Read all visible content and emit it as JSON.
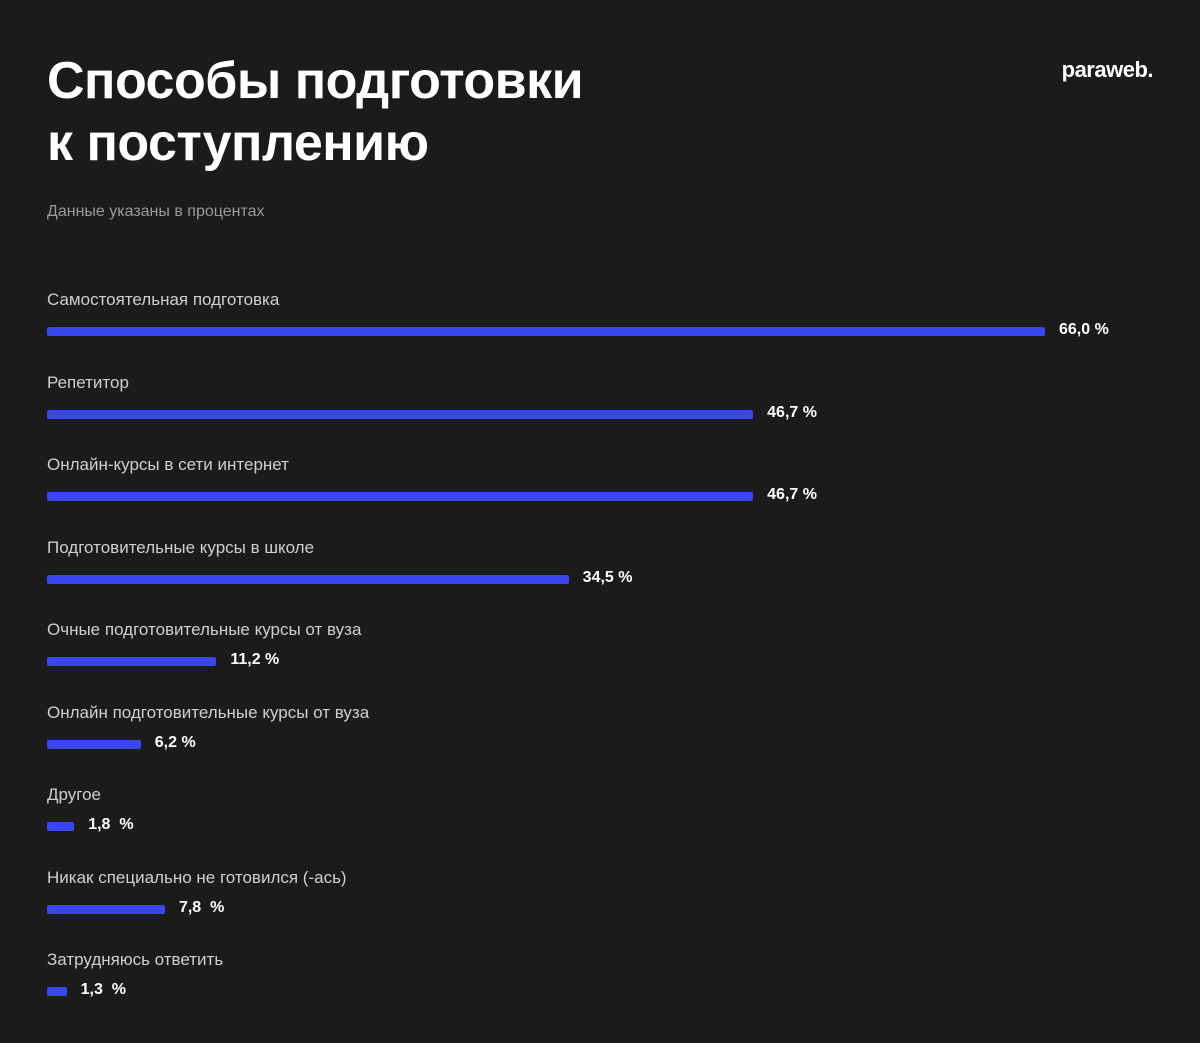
{
  "header": {
    "title_line1": "Способы подготовки",
    "title_line2": "к поступлению",
    "logo": "paraweb.",
    "subtitle": "Данные указаны в процентах"
  },
  "chart_data": {
    "type": "bar",
    "orientation": "horizontal",
    "title": "Способы подготовки к поступлению",
    "subtitle": "Данные указаны в процентах",
    "categories": [
      "Самостоятельная подготовка",
      "Репетитор",
      "Онлайн-курсы в сети интернет",
      "Подготовительные курсы в школе",
      "Очные подготовительные курсы от вуза",
      "Онлайн подготовительные курсы от вуза",
      "Другое",
      "Никак специально не готовился (-ась)",
      "Затрудняюсь ответить"
    ],
    "values": [
      66.0,
      46.7,
      46.7,
      34.5,
      11.2,
      6.2,
      1.8,
      7.8,
      1.3
    ],
    "value_labels": [
      "66,0 %",
      "46,7 %",
      "46,7 %",
      "34,5 %",
      "11,2 %",
      "6,2 %",
      "1,8  %",
      "7,8  %",
      "1,3  %"
    ],
    "bar_color": "#3a47f0",
    "grid": false,
    "legend": "none"
  }
}
